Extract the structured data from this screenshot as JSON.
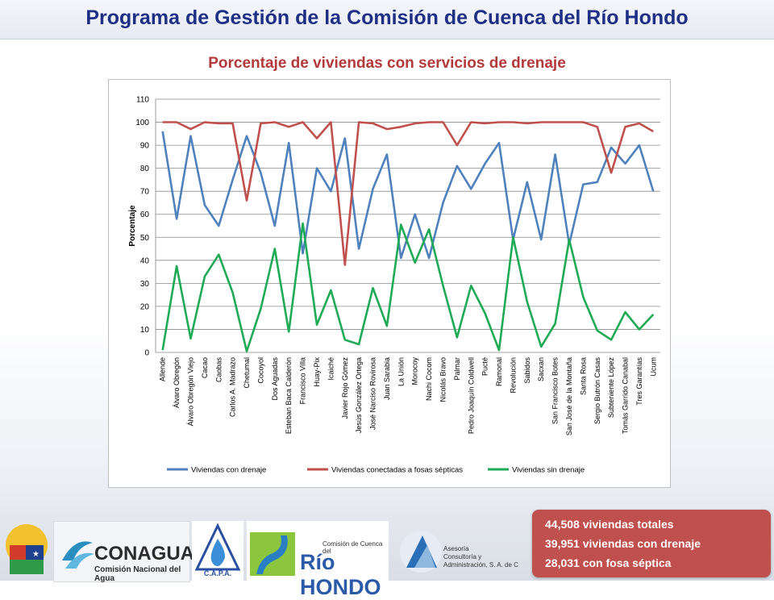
{
  "page": {
    "title": "Programa de Gestión de la Comisión de Cuenca del Río Hondo",
    "subtitle": "Porcentaje de viviendas con servicios de drenaje"
  },
  "summary": {
    "line1": "44,508 viviendas totales",
    "line2": "39,951 viviendas con drenaje",
    "line3": "28,031 con fosa séptica"
  },
  "logos": {
    "conagua_name": "CONAGUA",
    "conagua_sub": "Comisión Nacional del Agua",
    "capa": "C.A.P.A.",
    "riohondo_small": "Comisión de Cuenca del",
    "riohondo_big": "Río HONDO",
    "asesoria_1": "Asesoría",
    "asesoria_2": "Consultoría y",
    "asesoria_3": "Administración, S. A. de C"
  },
  "colors": {
    "title": "#1f2f86",
    "subtitle": "#b33a3a",
    "series_con": "#4f81bd",
    "series_fosa": "#c0504d",
    "series_sin": "#1faa55",
    "summary_bg": "#c0504d"
  },
  "chart_data": {
    "type": "line",
    "title": "",
    "xlabel": "",
    "ylabel": "Porcentaje",
    "ylim": [
      0,
      110
    ],
    "yticks": [
      0,
      10,
      20,
      30,
      40,
      50,
      60,
      70,
      80,
      90,
      100,
      110
    ],
    "grid": true,
    "legend": "bottom",
    "categories": [
      "Allende",
      "Álvaro Obregón",
      "Álvaro Obregón Viejo",
      "Cacao",
      "Caobas",
      "Carlos A. Madrazo",
      "Chetumal",
      "Cocoyol",
      "Dos Aguadas",
      "Esteban Baca Calderón",
      "Francisco Villa",
      "Huay-Pix",
      "Icaiché",
      "Javier Rojo Gómez",
      "Jesús González Ortega",
      "José Narciso Rovirosa",
      "Juan Sarabia",
      "La Unión",
      "Morocoy",
      "Nachi Cocom",
      "Nicolás Bravo",
      "Palmar",
      "Pedro Joaquín Coldwell",
      "Pucté",
      "Ramonal",
      "Revolución",
      "Sabidos",
      "Sacxan",
      "San Francisco Botes",
      "San José de la Montaña",
      "Santa Rosa",
      "Sergio Butrón Casas",
      "Subteniente López",
      "Tomás Garrido Canabal",
      "Tres Garantías",
      "Ucum"
    ],
    "series": [
      {
        "name": "Viviendas con drenaje",
        "color": "#4f81bd",
        "values": [
          96,
          58,
          94,
          64,
          55,
          75,
          94,
          78,
          55,
          91,
          43,
          80,
          70,
          93,
          45,
          71,
          86,
          41,
          60,
          41,
          65,
          81,
          71,
          82,
          91,
          49,
          74,
          49,
          86,
          47,
          73,
          74,
          89,
          82,
          90,
          70
        ]
      },
      {
        "name": "Viviendas conectadas a fosas sépticas",
        "color": "#c0504d",
        "values": [
          100,
          100,
          97,
          100,
          99.5,
          99.5,
          66,
          99.5,
          100,
          98,
          100,
          93,
          100,
          38,
          100,
          99.5,
          97,
          98,
          99.5,
          100,
          100,
          90,
          100,
          99.5,
          100,
          100,
          99.5,
          100,
          100,
          100,
          100,
          98,
          78,
          98,
          99.5,
          96
        ]
      },
      {
        "name": "Viviendas sin drenaje",
        "color": "#1faa55",
        "values": [
          1,
          37.5,
          6,
          33,
          42.5,
          26,
          0.5,
          19,
          45,
          9,
          56,
          12,
          27,
          5.5,
          3.5,
          28,
          11.5,
          55.5,
          39,
          53.5,
          29,
          6.5,
          29,
          17,
          1,
          50,
          22,
          2.5,
          12.5,
          49,
          24,
          9.5,
          5.5,
          17.5,
          10,
          16.5
        ]
      }
    ]
  }
}
